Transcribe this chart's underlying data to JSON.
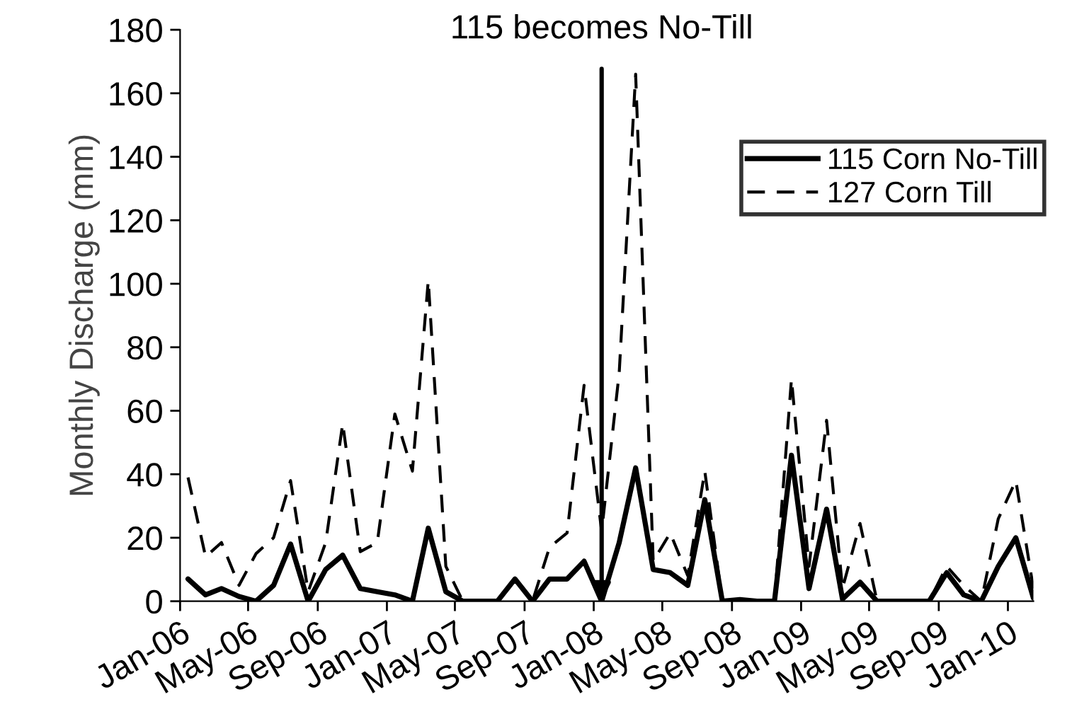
{
  "chart_data": {
    "type": "line",
    "ylabel": "Monthly Discharge (mm)",
    "annotations": [
      {
        "text": "115 becomes No-Till",
        "x": "2008-01-15",
        "y": 0
      }
    ],
    "x": [
      "2006-01-15",
      "2006-02-15",
      "2006-03-15",
      "2006-04-15",
      "2006-05-15",
      "2006-06-15",
      "2006-07-15",
      "2006-08-15",
      "2006-09-15",
      "2006-10-15",
      "2006-11-15",
      "2006-12-15",
      "2007-01-15",
      "2007-02-15",
      "2007-03-15",
      "2007-04-15",
      "2007-05-15",
      "2007-06-15",
      "2007-07-15",
      "2007-08-15",
      "2007-09-15",
      "2007-10-15",
      "2007-11-15",
      "2007-12-15",
      "2008-01-15",
      "2008-02-15",
      "2008-03-15",
      "2008-04-15",
      "2008-05-15",
      "2008-06-15",
      "2008-07-15",
      "2008-08-15",
      "2008-09-15",
      "2008-10-15",
      "2008-11-15",
      "2008-12-15",
      "2009-01-15",
      "2009-02-15",
      "2009-03-15",
      "2009-04-15",
      "2009-05-15",
      "2009-06-15",
      "2009-07-15",
      "2009-08-15",
      "2009-09-15",
      "2009-10-15",
      "2009-11-15",
      "2009-12-15",
      "2010-01-15",
      "2010-02-15"
    ],
    "series": [
      {
        "name": "115 Corn No-Till",
        "color": "#000000",
        "line_style": "solid",
        "values": [
          7,
          2,
          4,
          1.5,
          0,
          5,
          18,
          0,
          10,
          14.5,
          4,
          3,
          2,
          0,
          23,
          3,
          0,
          0,
          0,
          7,
          0,
          7,
          7,
          12.6,
          0,
          18.5,
          42,
          10,
          9,
          5,
          32,
          0,
          0.5,
          0,
          0,
          46,
          4,
          29,
          0.7,
          6,
          0,
          0,
          0,
          0,
          9,
          2,
          0,
          11,
          20,
          1
        ]
      },
      {
        "name": "127 Corn Till",
        "color": "#000000",
        "line_style": "dashed",
        "values": [
          39,
          14,
          18.5,
          5,
          15,
          20,
          38,
          3,
          18.5,
          56,
          15.6,
          18.5,
          59,
          41,
          101,
          11,
          0,
          0,
          0,
          7,
          0,
          17,
          21.5,
          68,
          22,
          72,
          166,
          12.6,
          21.5,
          8,
          41,
          0,
          0,
          0,
          0,
          70,
          11,
          57,
          4,
          24.5,
          0,
          0,
          0,
          0,
          11,
          5,
          0,
          26,
          38,
          4
        ]
      }
    ],
    "xlim": [
      "2006-01-01",
      "2010-02-15"
    ],
    "xticks": [
      {
        "value": "2006-01-01",
        "label": "Jan-06"
      },
      {
        "value": "2006-05-01",
        "label": "May-06"
      },
      {
        "value": "2006-09-01",
        "label": "Sep-06"
      },
      {
        "value": "2007-01-01",
        "label": "Jan-07"
      },
      {
        "value": "2007-05-01",
        "label": "May-07"
      },
      {
        "value": "2007-09-01",
        "label": "Sep-07"
      },
      {
        "value": "2008-01-01",
        "label": "Jan-08"
      },
      {
        "value": "2008-05-01",
        "label": "May-08"
      },
      {
        "value": "2008-09-01",
        "label": "Sep-08"
      },
      {
        "value": "2009-01-01",
        "label": "Jan-09"
      },
      {
        "value": "2009-05-01",
        "label": "May-09"
      },
      {
        "value": "2009-09-01",
        "label": "Sep-09"
      },
      {
        "value": "2010-01-01",
        "label": "Jan-10"
      }
    ],
    "ylim": [
      0,
      180
    ],
    "yticks": [
      0,
      20,
      40,
      60,
      80,
      100,
      120,
      140,
      160,
      180
    ],
    "grid": false,
    "legend": "top right",
    "marker": "none"
  }
}
